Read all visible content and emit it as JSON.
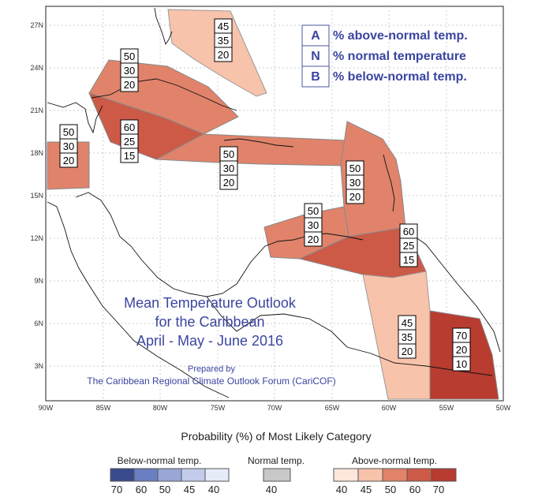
{
  "map": {
    "lat_labels": [
      "27N",
      "24N",
      "21N",
      "18N",
      "15N",
      "12N",
      "9N",
      "6N",
      "3N"
    ],
    "lon_labels": [
      "90W",
      "85W",
      "80W",
      "75W",
      "70W",
      "65W",
      "60W",
      "55W",
      "50W"
    ]
  },
  "key": [
    {
      "letter": "A",
      "text": "% above-normal temp."
    },
    {
      "letter": "N",
      "text": "% normal temperature"
    },
    {
      "letter": "B",
      "text": "% below-normal temp."
    }
  ],
  "title": {
    "line1": "Mean Temperature Outlook",
    "line2": "for the Caribbean",
    "line3": "April - May - June 2016"
  },
  "credit": {
    "line1": "Prepared by",
    "line2": "The Caribbean Regional Climate Outlook Forum (CariCOF)"
  },
  "regions": [
    {
      "id": "bahamas",
      "values": [
        "45",
        "35",
        "20"
      ],
      "color": "#f7c3aa"
    },
    {
      "id": "cuba",
      "values": [
        "50",
        "30",
        "20"
      ],
      "color": "#e0836a"
    },
    {
      "id": "jamaica",
      "values": [
        "60",
        "25",
        "15"
      ],
      "color": "#cc5a47"
    },
    {
      "id": "belize",
      "values": [
        "50",
        "30",
        "20"
      ],
      "color": "#e0836a"
    },
    {
      "id": "hispaniola",
      "values": [
        "50",
        "30",
        "20"
      ],
      "color": "#e0836a"
    },
    {
      "id": "lesser-antilles",
      "values": [
        "50",
        "30",
        "20"
      ],
      "color": "#e0836a"
    },
    {
      "id": "abc-islands",
      "values": [
        "50",
        "30",
        "20"
      ],
      "color": "#e0836a"
    },
    {
      "id": "trinidad",
      "values": [
        "60",
        "25",
        "15"
      ],
      "color": "#cc5a47"
    },
    {
      "id": "guyana",
      "values": [
        "45",
        "35",
        "20"
      ],
      "color": "#f7c3aa"
    },
    {
      "id": "french-guiana",
      "values": [
        "70",
        "20",
        "10"
      ],
      "color": "#b83c30"
    }
  ],
  "legend": {
    "heading": "Probability (%) of Most Likely Category",
    "below": {
      "title": "Below-normal temp.",
      "ticks": [
        "70",
        "60",
        "50",
        "45",
        "40"
      ],
      "colors": [
        "#3a4a8c",
        "#6a7ec2",
        "#9aa6d6",
        "#c4cceb",
        "#e6ebf8"
      ]
    },
    "normal": {
      "title": "Normal temp.",
      "ticks": [
        "40"
      ],
      "colors": [
        "#c8c8c8"
      ]
    },
    "above": {
      "title": "Above-normal temp.",
      "ticks": [
        "40",
        "45",
        "50",
        "60",
        "70"
      ],
      "colors": [
        "#fde6dc",
        "#f7c3aa",
        "#e0836a",
        "#cc5a47",
        "#b83c30"
      ]
    }
  }
}
